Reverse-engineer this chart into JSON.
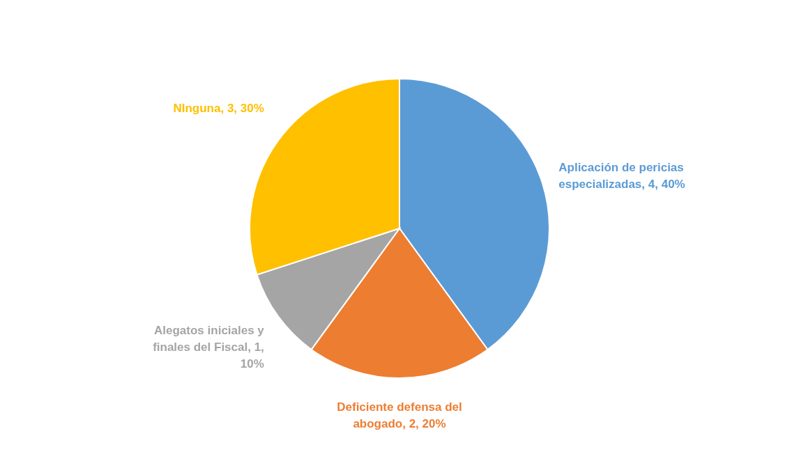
{
  "chart_data": {
    "type": "pie",
    "categories": [
      "Aplicación de pericias especializadas",
      "Deficiente defensa del abogado",
      "Alegatos iniciales y finales del Fiscal",
      "NInguna"
    ],
    "values": [
      4,
      2,
      1,
      3
    ],
    "value_labels": [
      "4, 40%",
      "2, 20%",
      "1, 10%",
      "3, 30%"
    ],
    "colors": [
      "#5b9bd5",
      "#ed7d31",
      "#a5a5a5",
      "#ffc000"
    ]
  }
}
